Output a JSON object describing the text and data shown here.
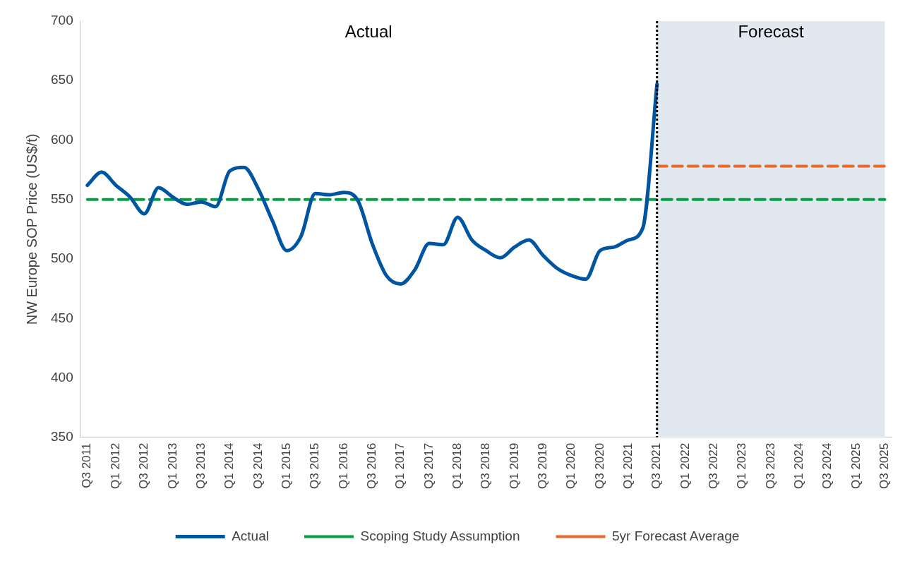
{
  "chart_data": {
    "type": "line",
    "ylabel": "NW Europe SOP Price (US$/t)",
    "categories": [
      "Q3 2011",
      null,
      "Q1 2012",
      null,
      "Q3 2012",
      null,
      "Q1 2013",
      null,
      "Q3 2013",
      null,
      "Q1 2014",
      null,
      "Q3 2014",
      null,
      "Q1 2015",
      null,
      "Q3 2015",
      null,
      "Q1 2016",
      null,
      "Q3 2016",
      null,
      "Q1 2017",
      null,
      "Q3 2017",
      null,
      "Q1 2018",
      null,
      "Q3 2018",
      null,
      "Q1 2019",
      null,
      "Q3 2019",
      null,
      "Q1 2020",
      null,
      "Q3 2020",
      null,
      "Q1 2021",
      null,
      "Q3 2021",
      null,
      "Q1 2022",
      null,
      "Q3 2022",
      null,
      "Q1 2023",
      null,
      "Q3 2023",
      null,
      "Q1 2024",
      null,
      "Q3 2024",
      null,
      "Q1 2025",
      null,
      "Q3 2025"
    ],
    "series": [
      {
        "name": "Actual",
        "color": "#0055a0",
        "line_style": "solid",
        "values": [
          562,
          573,
          562,
          552,
          538,
          560,
          552,
          546,
          548,
          544,
          574,
          577,
          559,
          532,
          507,
          519,
          555,
          554,
          556,
          549,
          513,
          486,
          479,
          491,
          513,
          512,
          535,
          516,
          507,
          501,
          510,
          516,
          503,
          492,
          486,
          483,
          507,
          510,
          516,
          526,
          647,
          null,
          null,
          null,
          null,
          null,
          null,
          null,
          null,
          null,
          null,
          null,
          null,
          null,
          null,
          null,
          null
        ]
      },
      {
        "name": "Scoping Study Assumption",
        "color": "#00a040",
        "line_style": "dashed",
        "values": [
          550,
          550,
          550,
          550,
          550,
          550,
          550,
          550,
          550,
          550,
          550,
          550,
          550,
          550,
          550,
          550,
          550,
          550,
          550,
          550,
          550,
          550,
          550,
          550,
          550,
          550,
          550,
          550,
          550,
          550,
          550,
          550,
          550,
          550,
          550,
          550,
          550,
          550,
          550,
          550,
          550,
          550,
          550,
          550,
          550,
          550,
          550,
          550,
          550,
          550,
          550,
          550,
          550,
          550,
          550,
          550,
          550
        ]
      },
      {
        "name": "5yr Forecast Average",
        "color": "#e8672b",
        "line_style": "dashed",
        "values": [
          null,
          null,
          null,
          null,
          null,
          null,
          null,
          null,
          null,
          null,
          null,
          null,
          null,
          null,
          null,
          null,
          null,
          null,
          null,
          null,
          null,
          null,
          null,
          null,
          null,
          null,
          null,
          null,
          null,
          null,
          null,
          null,
          null,
          null,
          null,
          null,
          null,
          null,
          null,
          null,
          578,
          578,
          578,
          578,
          578,
          578,
          578,
          578,
          578,
          578,
          578,
          578,
          578,
          578,
          578,
          578,
          578
        ]
      }
    ],
    "ylim": [
      350,
      700
    ],
    "yticks": [
      350,
      400,
      450,
      500,
      550,
      600,
      650,
      700
    ],
    "ref_lines": [
      {
        "axis": "x",
        "value": "Q3 2021",
        "color": "#000000",
        "line_style": "dotted"
      }
    ],
    "bands": [
      {
        "axis": "x",
        "from": "Q3 2021",
        "to": "Q3 2025",
        "label": "Forecast",
        "color": "#e1e8f0"
      }
    ],
    "annotations": [
      "Actual"
    ],
    "grid": false,
    "legend": "bottom",
    "marker": "none"
  }
}
